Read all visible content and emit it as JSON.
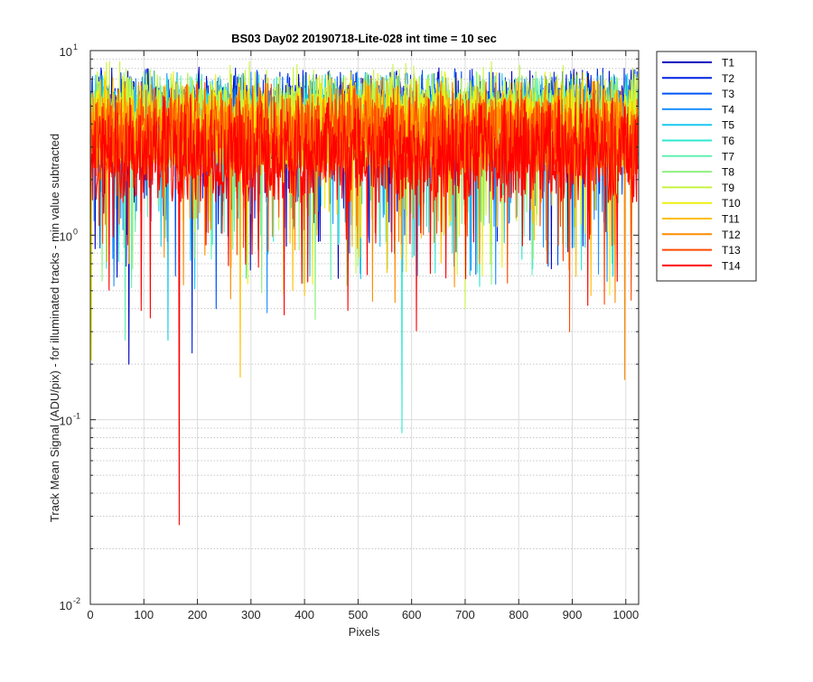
{
  "chart_data": {
    "type": "line",
    "title": "BS03 Day02 20190718-Lite-028 int time = 10 sec",
    "xlabel": "Pixels",
    "ylabel": "Track Mean Signal (ADU/pix) - for illuminated tracks - min value subtracted",
    "xlim": [
      0,
      1024
    ],
    "ylim": [
      0.01,
      10
    ],
    "yscale": "log",
    "grid": true,
    "legend_position": "outside-top-right",
    "x_ticks": [
      0,
      100,
      200,
      300,
      400,
      500,
      600,
      700,
      800,
      900,
      1000
    ],
    "x_tick_labels": [
      "0",
      "100",
      "200",
      "300",
      "400",
      "500",
      "600",
      "700",
      "800",
      "900",
      "1000"
    ],
    "y_ticks": [
      0.01,
      0.1,
      1,
      10
    ],
    "y_tick_labels": [
      {
        "base": "10",
        "exp": "-2"
      },
      {
        "base": "10",
        "exp": "-1"
      },
      {
        "base": "10",
        "exp": "0"
      },
      {
        "base": "10",
        "exp": "1"
      }
    ],
    "pixel_count": 1024,
    "series": [
      {
        "name": "T1",
        "color": "#0000bf",
        "typical_low": 2.6,
        "typical_high": 6.5,
        "min": 0.2,
        "min_pixel": 72
      },
      {
        "name": "T2",
        "color": "#0022e0",
        "typical_low": 2.6,
        "typical_high": 6.5,
        "min": 0.23,
        "min_pixel": 190
      },
      {
        "name": "T3",
        "color": "#0055f5",
        "typical_low": 2.5,
        "typical_high": 6.3,
        "min": 0.4,
        "min_pixel": 235
      },
      {
        "name": "T4",
        "color": "#1e90ff",
        "typical_low": 2.5,
        "typical_high": 6.2,
        "min": 0.38,
        "min_pixel": 330
      },
      {
        "name": "T5",
        "color": "#18c8f0",
        "typical_low": 2.4,
        "typical_high": 6.0,
        "min": 0.27,
        "min_pixel": 145
      },
      {
        "name": "T6",
        "color": "#30e8d0",
        "typical_low": 2.4,
        "typical_high": 6.0,
        "min": 0.085,
        "min_pixel": 582
      },
      {
        "name": "T7",
        "color": "#60f0b0",
        "typical_low": 2.3,
        "typical_high": 6.0,
        "min": 0.27,
        "min_pixel": 65
      },
      {
        "name": "T8",
        "color": "#90f080",
        "typical_low": 2.3,
        "typical_high": 6.2,
        "min": 0.35,
        "min_pixel": 420
      },
      {
        "name": "T9",
        "color": "#c8f440",
        "typical_low": 2.5,
        "typical_high": 7.0,
        "min": 0.4,
        "min_pixel": 700
      },
      {
        "name": "T10",
        "color": "#eef010",
        "typical_low": 2.3,
        "typical_high": 6.2,
        "min": 0.21,
        "min_pixel": 2
      },
      {
        "name": "T11",
        "color": "#ffbe00",
        "typical_low": 2.2,
        "typical_high": 5.8,
        "min": 0.17,
        "min_pixel": 280
      },
      {
        "name": "T12",
        "color": "#ff8c00",
        "typical_low": 2.1,
        "typical_high": 5.6,
        "min": 0.165,
        "min_pixel": 998
      },
      {
        "name": "T13",
        "color": "#ff4a00",
        "typical_low": 2.0,
        "typical_high": 5.5,
        "min": 0.3,
        "min_pixel": 895
      },
      {
        "name": "T14",
        "color": "#ff0000",
        "typical_low": 1.5,
        "typical_high": 4.6,
        "min": 0.027,
        "min_pixel": 166
      }
    ]
  }
}
